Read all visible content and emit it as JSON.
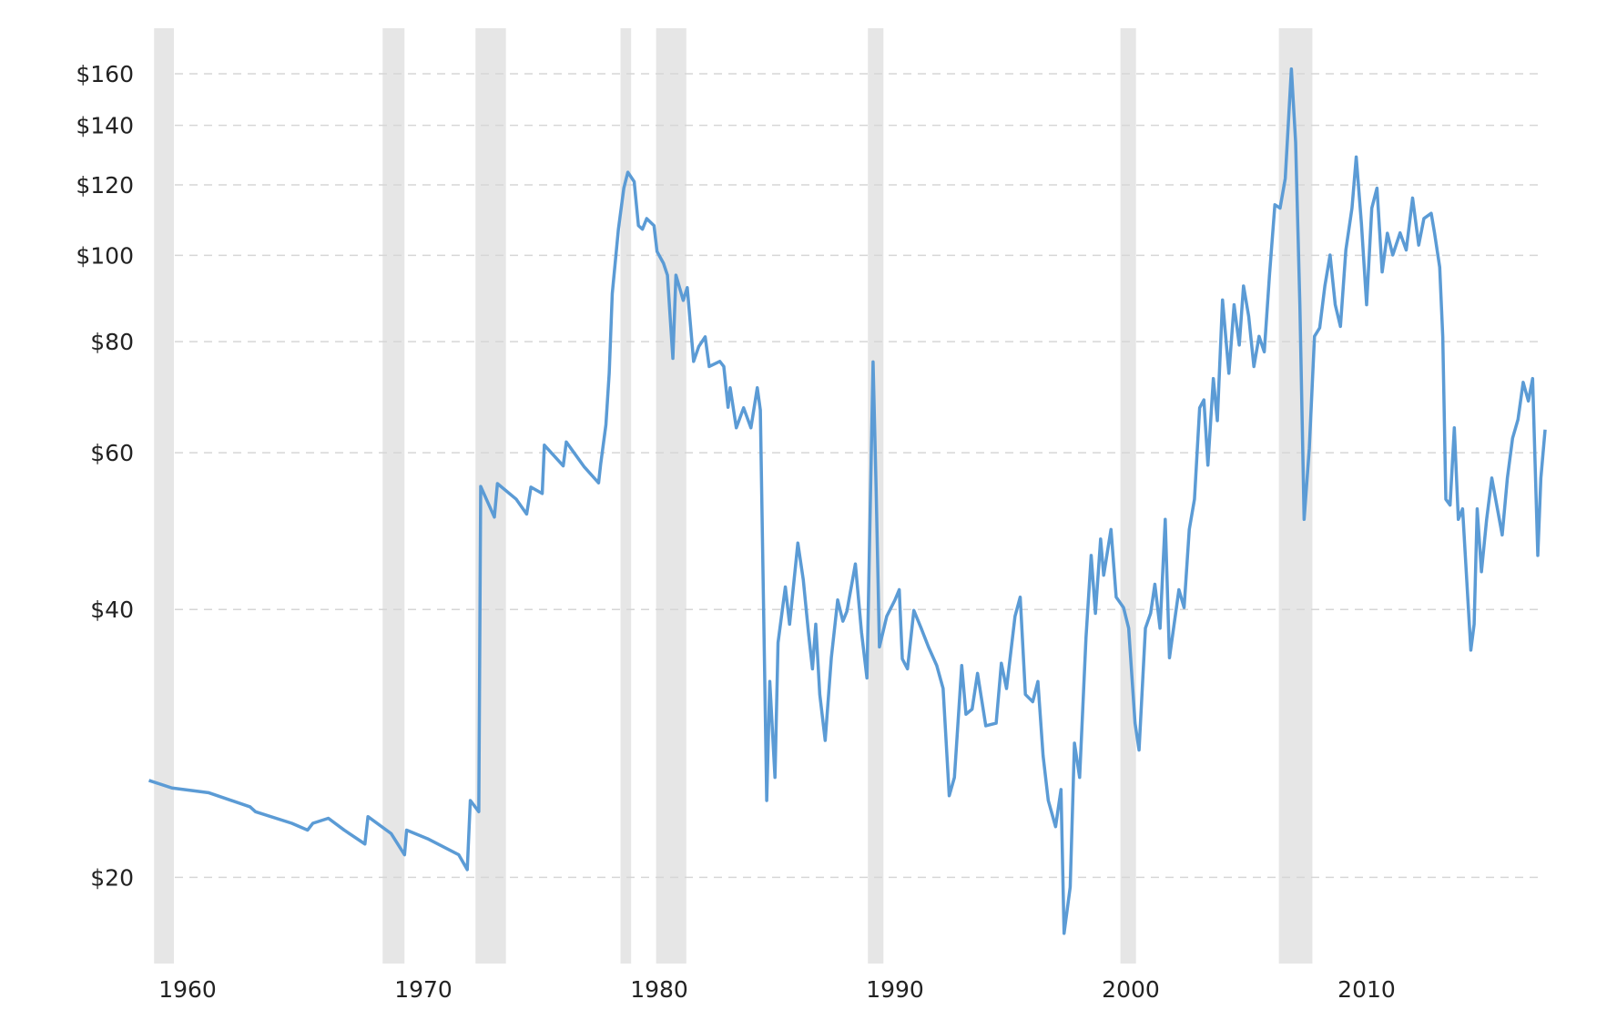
{
  "chart_data": {
    "type": "line",
    "log_y": true,
    "grid": true,
    "xlim": [
      1958.3,
      2017.8
    ],
    "xticks": [
      1960,
      1970,
      1980,
      1990,
      2000,
      2010
    ],
    "ylim": [
      16,
      180
    ],
    "yticks": [
      {
        "value": 20,
        "label": "$20"
      },
      {
        "value": 40,
        "label": "$40"
      },
      {
        "value": 60,
        "label": "$60"
      },
      {
        "value": 80,
        "label": "$80"
      },
      {
        "value": 100,
        "label": "$100"
      },
      {
        "value": 120,
        "label": "$120"
      },
      {
        "value": 140,
        "label": "$140"
      },
      {
        "value": 160,
        "label": "$160"
      }
    ],
    "recession_color": "#e6e6e6",
    "recessions": [
      [
        1958.58,
        1959.42
      ],
      [
        1968.27,
        1969.2
      ],
      [
        1972.21,
        1973.5
      ],
      [
        1978.36,
        1978.81
      ],
      [
        1979.87,
        1981.15
      ],
      [
        1988.85,
        1989.51
      ],
      [
        1999.56,
        2000.22
      ],
      [
        2006.28,
        2007.7
      ]
    ],
    "color": "#5b9bd5",
    "x": [
      1958.36,
      1959.34,
      1960.88,
      1962.65,
      1962.88,
      1964.42,
      1965.09,
      1965.31,
      1965.97,
      1966.64,
      1967.52,
      1967.65,
      1968.63,
      1969.2,
      1969.29,
      1970.18,
      1971.5,
      1971.86,
      1971.99,
      1972.35,
      1972.43,
      1973.01,
      1973.14,
      1973.94,
      1974.38,
      1974.56,
      1975.04,
      1975.13,
      1975.93,
      1976.06,
      1976.81,
      1977.43,
      1977.52,
      1977.74,
      1977.88,
      1978.01,
      1978.27,
      1978.5,
      1978.67,
      1978.94,
      1979.12,
      1979.29,
      1979.47,
      1979.78,
      1979.91,
      1980.18,
      1980.35,
      1980.58,
      1980.71,
      1981.02,
      1981.19,
      1981.46,
      1981.68,
      1981.95,
      1982.12,
      1982.57,
      1982.74,
      1982.92,
      1983.01,
      1983.27,
      1983.58,
      1983.89,
      1984.16,
      1984.29,
      1984.56,
      1984.69,
      1984.91,
      1985.04,
      1985.35,
      1985.53,
      1985.88,
      1986.11,
      1986.33,
      1986.5,
      1986.64,
      1986.81,
      1987.04,
      1987.3,
      1987.57,
      1987.79,
      1987.96,
      1988.32,
      1988.58,
      1988.81,
      1989.07,
      1989.2,
      1989.34,
      1989.65,
      1990,
      1990.18,
      1990.31,
      1990.53,
      1990.8,
      1991.11,
      1991.42,
      1991.77,
      1992.04,
      1992.3,
      1992.52,
      1992.83,
      1993.01,
      1993.27,
      1993.5,
      1993.85,
      1994.29,
      1994.51,
      1994.73,
      1995.09,
      1995.31,
      1995.53,
      1995.84,
      1996.06,
      1996.28,
      1996.5,
      1996.81,
      1997.04,
      1997.17,
      1997.43,
      1997.61,
      1997.83,
      1998.1,
      1998.32,
      1998.5,
      1998.72,
      1998.85,
      1999.16,
      1999.38,
      1999.69,
      1999.91,
      2000.18,
      2000.35,
      2000.62,
      2000.84,
      2001.02,
      2001.24,
      2001.46,
      2001.64,
      2002.04,
      2002.26,
      2002.48,
      2002.7,
      2002.92,
      2003.1,
      2003.27,
      2003.5,
      2003.67,
      2003.89,
      2004.16,
      2004.38,
      2004.6,
      2004.78,
      2005,
      2005.22,
      2005.44,
      2005.66,
      2005.88,
      2006.11,
      2006.33,
      2006.55,
      2006.81,
      2006.99,
      2007.17,
      2007.35,
      2007.57,
      2007.79,
      2008.01,
      2008.23,
      2008.45,
      2008.67,
      2008.89,
      2009.12,
      2009.38,
      2009.56,
      2009.78,
      2010,
      2010.22,
      2010.44,
      2010.66,
      2010.88,
      2011.11,
      2011.42,
      2011.68,
      2011.95,
      2012.21,
      2012.43,
      2012.74,
      2012.88,
      2013.1,
      2013.23,
      2013.36,
      2013.54,
      2013.72,
      2013.89,
      2014.07,
      2014.42,
      2014.56,
      2014.69,
      2014.87,
      2015.09,
      2015.31,
      2015.53,
      2015.75,
      2015.97,
      2016.19,
      2016.42,
      2016.64,
      2016.86,
      2017.04,
      2017.26,
      2017.39,
      2017.57
    ],
    "values": [
      25.7,
      25.2,
      24.9,
      24.0,
      23.7,
      23.0,
      22.6,
      23.0,
      23.3,
      22.6,
      21.8,
      23.4,
      22.4,
      21.2,
      22.6,
      22.1,
      21.2,
      20.4,
      24.4,
      23.7,
      55.0,
      50.8,
      55.4,
      53.2,
      51.2,
      54.9,
      54.0,
      61.2,
      58.0,
      61.7,
      57.9,
      55.5,
      58.3,
      64.5,
      73.7,
      90.6,
      107,
      119,
      124,
      121,
      108,
      107,
      110,
      108,
      101,
      98,
      95,
      76.6,
      95,
      89,
      92,
      76,
      79,
      81,
      75,
      76,
      75,
      67.5,
      71,
      64,
      67.4,
      64,
      71,
      67,
      24.4,
      33.2,
      25.9,
      36.7,
      42.4,
      38.5,
      47.5,
      43.2,
      37.7,
      34.3,
      38.5,
      32.1,
      28.5,
      35.3,
      41.0,
      38.8,
      39.8,
      45.0,
      37.7,
      33.5,
      75.9,
      54.6,
      36.3,
      39.3,
      41.0,
      42.1,
      35.2,
      34.3,
      39.9,
      38.1,
      36.3,
      34.6,
      32.6,
      24.7,
      25.9,
      34.6,
      30.5,
      30.9,
      33.9,
      29.6,
      29.8,
      34.8,
      32.6,
      39.3,
      41.3,
      32.1,
      31.5,
      33.2,
      27.4,
      24.4,
      22.8,
      25.1,
      17.3,
      19.5,
      28.3,
      25.9,
      37.2,
      46.0,
      39.6,
      48.0,
      43.7,
      49.2,
      41.3,
      40.2,
      38.1,
      29.8,
      27.8,
      38.1,
      39.6,
      42.7,
      38.1,
      50.5,
      35.3,
      42.1,
      40.2,
      49.2,
      53.2,
      67.4,
      68.8,
      58.1,
      72.7,
      65.2,
      89.1,
      73.7,
      88.0,
      79.3,
      92.4,
      85.4,
      75.0,
      81.1,
      77.9,
      94.9,
      114,
      113,
      122,
      162,
      134,
      88,
      50.5,
      60.7,
      81.1,
      82.9,
      92.4,
      100.1,
      88,
      83.2,
      101.4,
      113,
      129,
      108.6,
      88,
      113,
      119,
      95.8,
      105.9,
      100.1,
      106,
      101.4,
      116,
      102.7,
      110,
      111.5,
      106,
      97,
      81,
      53.2,
      52.4,
      64,
      50.5,
      51.9,
      36.0,
      38.5,
      51.9,
      44.1,
      50.5,
      56.2,
      52.2,
      48.5,
      56.2,
      62.3,
      65.4,
      72,
      68.6,
      72.7,
      46.0,
      56.2,
      63.7
    ]
  }
}
